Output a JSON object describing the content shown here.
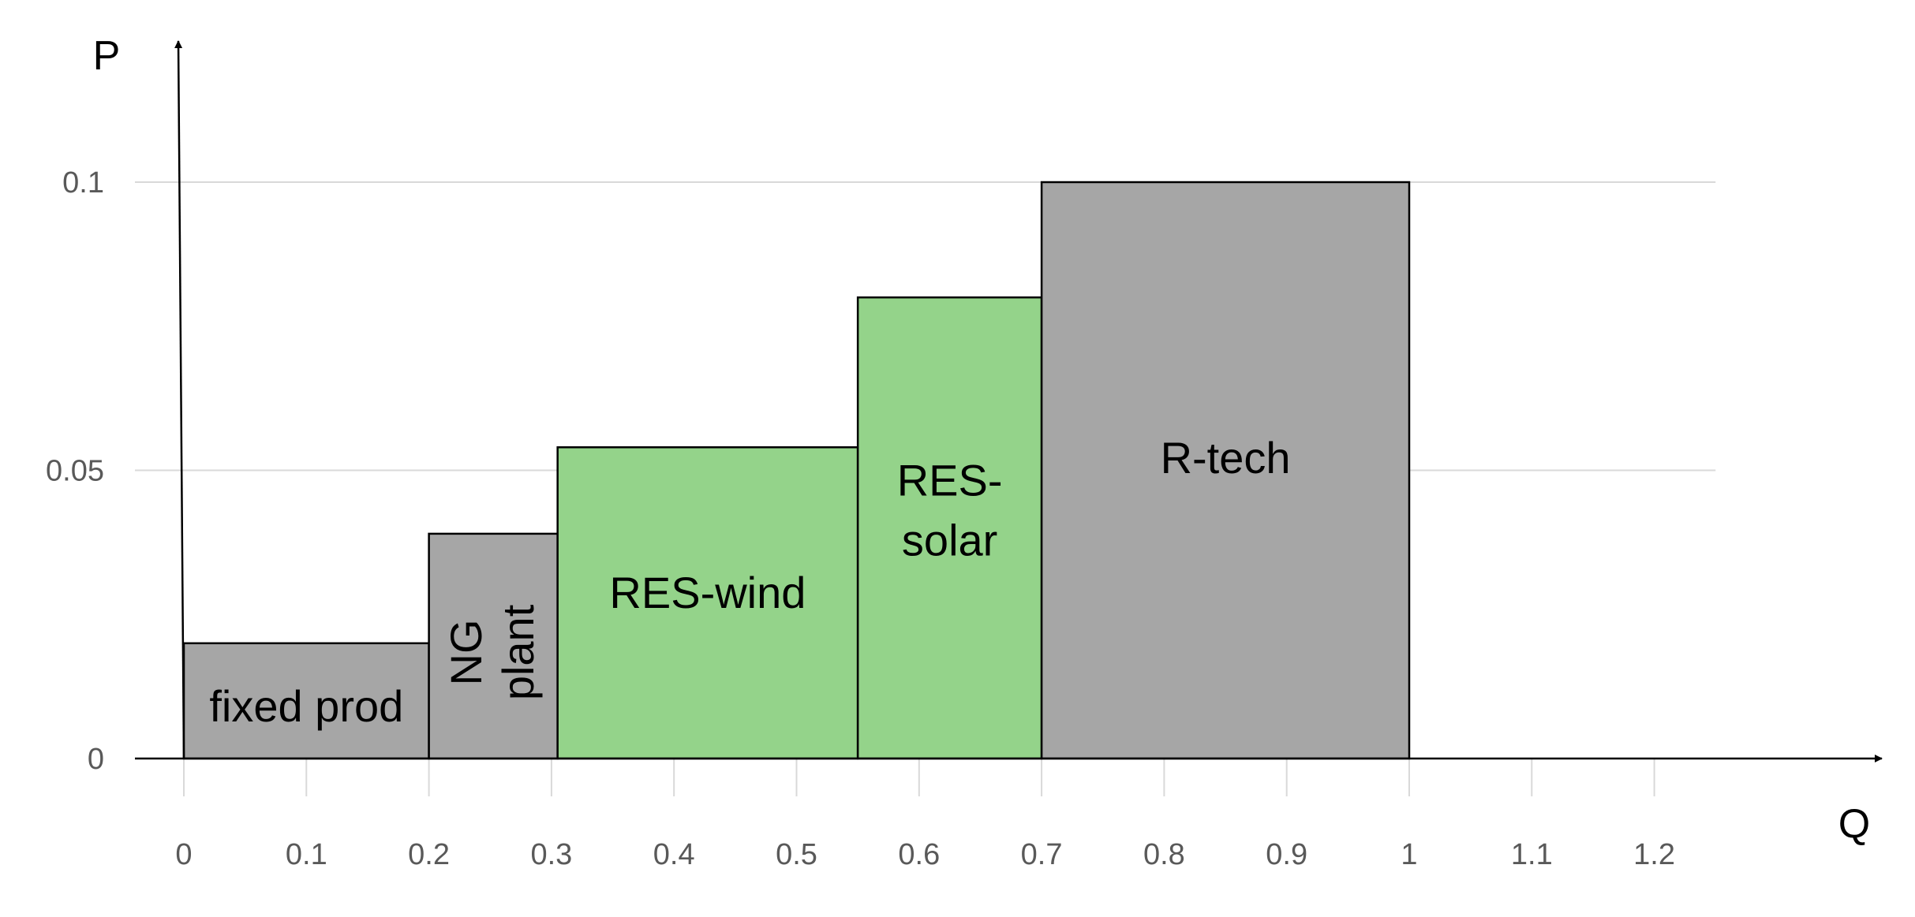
{
  "chart_data": {
    "type": "bar",
    "subtype": "variable-width step chart (merit order)",
    "title": "",
    "xlabel": "Q",
    "ylabel": "P",
    "xlim": [
      0,
      1.25
    ],
    "ylim": [
      0,
      0.12
    ],
    "x_ticks": [
      0,
      0.1,
      0.2,
      0.3,
      0.4,
      0.5,
      0.6,
      0.7,
      0.8,
      0.9,
      1,
      1.1,
      1.2
    ],
    "x_tick_labels": [
      "0",
      "0.1",
      "0.2",
      "0.3",
      "0.4",
      "0.5",
      "0.6",
      "0.7",
      "0.8",
      "0.9",
      "1",
      "1.1",
      "1.2"
    ],
    "y_ticks": [
      0,
      0.05,
      0.1
    ],
    "y_tick_labels": [
      "0",
      "0.05",
      "0.1"
    ],
    "grid": true,
    "blocks": [
      {
        "key": "fixed-prod",
        "label_lines": [
          "fixed prod"
        ],
        "x0": 0,
        "x1": 0.2,
        "value": 0.02,
        "color": "#a6a6a6",
        "vertical": false
      },
      {
        "key": "ng-plant",
        "label_lines": [
          "NG",
          "plant"
        ],
        "x0": 0.2,
        "x1": 0.305,
        "value": 0.039,
        "color": "#a6a6a6",
        "vertical": true
      },
      {
        "key": "res-wind",
        "label_lines": [
          "RES-wind"
        ],
        "x0": 0.305,
        "x1": 0.55,
        "value": 0.054,
        "color": "#94d38a",
        "vertical": false
      },
      {
        "key": "res-solar",
        "label_lines": [
          "RES-",
          "solar"
        ],
        "x0": 0.55,
        "x1": 0.7,
        "value": 0.08,
        "color": "#94d38a",
        "vertical": false
      },
      {
        "key": "r-tech",
        "label_lines": [
          "R-tech"
        ],
        "x0": 0.7,
        "x1": 1.0,
        "value": 0.1,
        "color": "#a6a6a6",
        "vertical": false
      }
    ],
    "colors": {
      "grey_block": "#a6a6a6",
      "green_block": "#94d38a",
      "gridline": "#d9d9d9",
      "axis": "#000000",
      "tick_text": "#595959"
    }
  }
}
